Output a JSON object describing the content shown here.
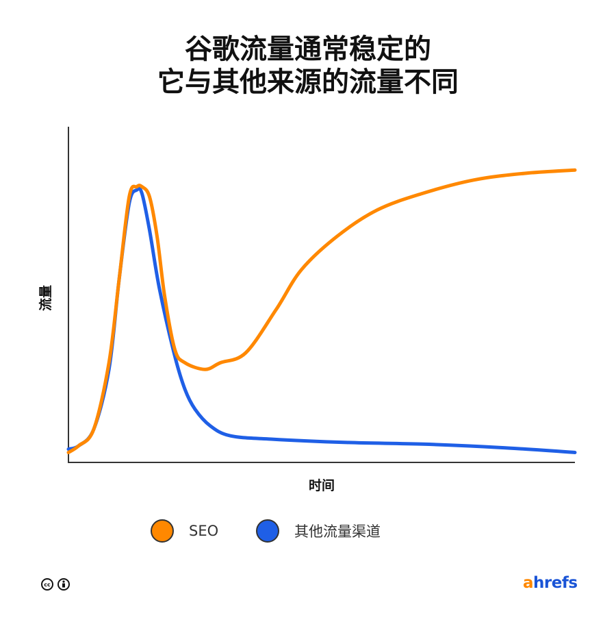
{
  "title": {
    "line1": "谷歌流量通常稳定的",
    "line2": "它与其他来源的流量不同"
  },
  "chart_data": {
    "type": "line",
    "title": "谷歌流量通常稳定的 它与其他来源的流量不同",
    "xlabel": "时间",
    "ylabel": "流量",
    "xlim": [
      0,
      100
    ],
    "ylim": [
      0,
      100
    ],
    "grid": false,
    "legend_position": "bottom",
    "series": [
      {
        "name": "SEO",
        "color": "#ff8800",
        "x": [
          0,
          2,
          5,
          8,
          10,
          12,
          13.5,
          14.5,
          16,
          17.5,
          19,
          21,
          23,
          27,
          30,
          35,
          41,
          46,
          53,
          61,
          70,
          80,
          90,
          100
        ],
        "y": [
          3,
          5,
          10,
          30,
          55,
          80,
          83,
          83,
          80,
          68,
          50,
          34,
          30,
          28,
          30,
          33,
          46,
          58,
          68,
          76,
          81,
          85,
          87,
          88
        ]
      },
      {
        "name": "其他流量渠道",
        "color": "#1f5fe6",
        "x": [
          0,
          2,
          5,
          8,
          10,
          12,
          13.5,
          14.5,
          16,
          18,
          21,
          23,
          25,
          28,
          32,
          40,
          55,
          70,
          85,
          100
        ],
        "y": [
          4,
          5,
          10,
          28,
          55,
          78,
          82,
          81,
          70,
          52,
          32,
          22,
          16,
          11,
          8,
          7,
          6,
          5.5,
          4.5,
          3
        ]
      }
    ]
  },
  "legend": [
    {
      "label": "SEO",
      "color": "#ff8800"
    },
    {
      "label": "其他流量渠道",
      "color": "#1f5fe6"
    }
  ],
  "footer": {
    "license_icons": [
      "cc-icon",
      "attribution-icon"
    ],
    "logo_a": "a",
    "logo_rest": "hrefs"
  }
}
